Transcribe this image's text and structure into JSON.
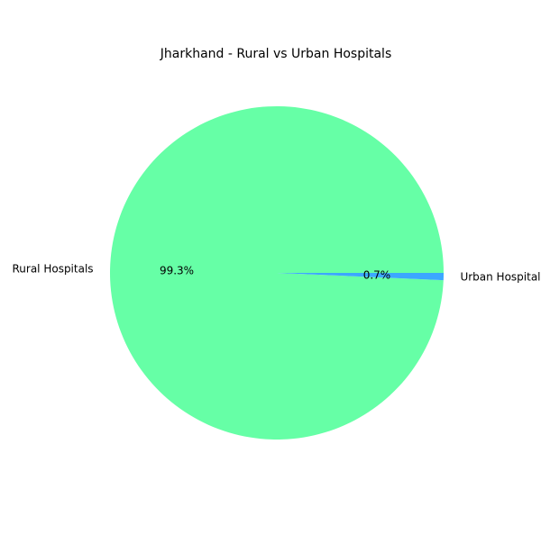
{
  "chart_data": {
    "type": "pie",
    "title": "Jharkhand - Rural vs Urban Hospitals",
    "slices": [
      {
        "label": "Rural Hospitals",
        "value": 99.3,
        "pct_label": "99.3%",
        "color": "#66ffa6"
      },
      {
        "label": "Urban Hospitals",
        "value": 0.7,
        "pct_label": "0.7%",
        "color": "#3ca7ff"
      }
    ],
    "legend": "none"
  }
}
